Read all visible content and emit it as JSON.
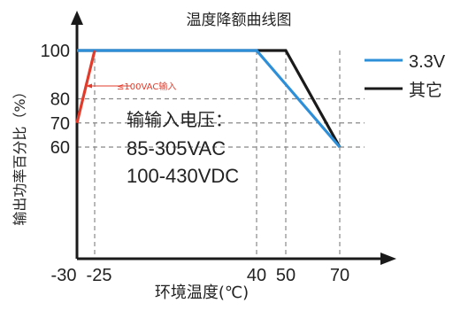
{
  "chart_data": {
    "type": "line",
    "title": "温度降额曲线图",
    "xlabel": "环境温度(℃)",
    "ylabel": "输出功率百分比（%）",
    "x_ticks": [
      "-30",
      "-25",
      "40",
      "50",
      "70"
    ],
    "y_ticks": [
      "100",
      "80",
      "70",
      "60"
    ],
    "x_tick_values": [
      -30,
      -25,
      40,
      50,
      70
    ],
    "y_tick_values": [
      100,
      80,
      70,
      60
    ],
    "grid_x": [
      -25,
      40,
      50,
      70
    ],
    "grid_y": [
      80,
      70,
      60
    ],
    "series": [
      {
        "name": "3.3V",
        "color": "#2e8fd9",
        "points": [
          [
            -30,
            100
          ],
          [
            40,
            100
          ],
          [
            70,
            60
          ]
        ]
      },
      {
        "name": "其它",
        "color": "#1a1a1a",
        "points": [
          [
            -30,
            100
          ],
          [
            50,
            100
          ],
          [
            70,
            60
          ]
        ]
      },
      {
        "name": "",
        "color": "#e23b2b",
        "points": [
          [
            -30,
            70
          ],
          [
            -25,
            100
          ]
        ]
      }
    ],
    "annotations": {
      "input_note": "≤100VAC输入",
      "spec_lines": [
        "输输入电压：",
        "85-305VAC",
        "100-430VDC"
      ]
    },
    "legend_position": "top-right"
  }
}
